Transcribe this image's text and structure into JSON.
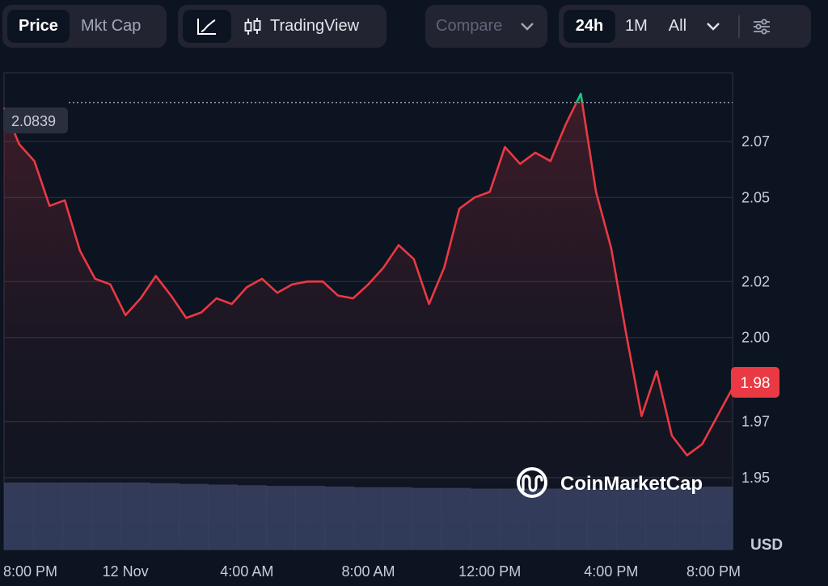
{
  "toolbar": {
    "metric_tabs": [
      {
        "label": "Price",
        "active": true
      },
      {
        "label": "Mkt Cap",
        "active": false
      }
    ],
    "view_tabs": [
      {
        "icon": "line-chart-icon",
        "active": true
      },
      {
        "icon": "candlestick-icon",
        "label": "TradingView",
        "active": false
      }
    ],
    "compare_label": "Compare",
    "range_tabs": [
      {
        "label": "24h",
        "active": true
      },
      {
        "label": "1M",
        "active": false
      },
      {
        "label": "All",
        "active": false
      }
    ]
  },
  "chart_data": {
    "type": "line",
    "currency_label": "USD",
    "reference_price": "2.0839",
    "current_price_label": "1.98",
    "y_ticks": [
      "2.07",
      "2.05",
      "2.02",
      "2.00",
      "1.97",
      "1.95"
    ],
    "x_ticks": [
      "8:00 PM",
      "12 Nov",
      "4:00 AM",
      "8:00 AM",
      "12:00 PM",
      "4:00 PM",
      "8:00 PM"
    ],
    "colors": {
      "above": "#16c784",
      "below": "#ea3943",
      "volume": "#3a4568",
      "grid": "#2a2f3d"
    },
    "series": [
      {
        "x": [
          0,
          0.5,
          1,
          1.5,
          2,
          2.5,
          3,
          3.5,
          4,
          4.5,
          5,
          5.5,
          6,
          6.5,
          7,
          7.5,
          8,
          8.5,
          9,
          9.5,
          10,
          10.5,
          11,
          11.5,
          12,
          12.5,
          13,
          13.5,
          14,
          14.5,
          15,
          15.5,
          16,
          16.5,
          17,
          17.5,
          18,
          18.5,
          19,
          19.5,
          20,
          20.5,
          21,
          21.5,
          22,
          22.5,
          23,
          23.5,
          24
        ],
        "values": [
          2.082,
          2.069,
          2.063,
          2.047,
          2.049,
          2.031,
          2.021,
          2.019,
          2.008,
          2.014,
          2.022,
          2.015,
          2.007,
          2.009,
          2.014,
          2.012,
          2.018,
          2.021,
          2.016,
          2.019,
          2.02,
          2.02,
          2.015,
          2.014,
          2.019,
          2.025,
          2.033,
          2.028,
          2.012,
          2.025,
          2.046,
          2.05,
          2.052,
          2.068,
          2.062,
          2.066,
          2.063,
          2.076,
          2.087,
          2.052,
          2.032,
          2.001,
          1.972,
          1.988,
          1.965,
          1.958,
          1.962,
          1.972,
          1.982
        ]
      }
    ],
    "volume": [
      1,
      1,
      1,
      1,
      1,
      0.99,
      0.98,
      0.97,
      0.96,
      0.95,
      0.95,
      0.94,
      0.93,
      0.93,
      0.92,
      0.92,
      0.91,
      0.91,
      0.91,
      0.91,
      0.91,
      0.92,
      0.92,
      0.93,
      0.94
    ],
    "watermark": "CoinMarketCap"
  }
}
